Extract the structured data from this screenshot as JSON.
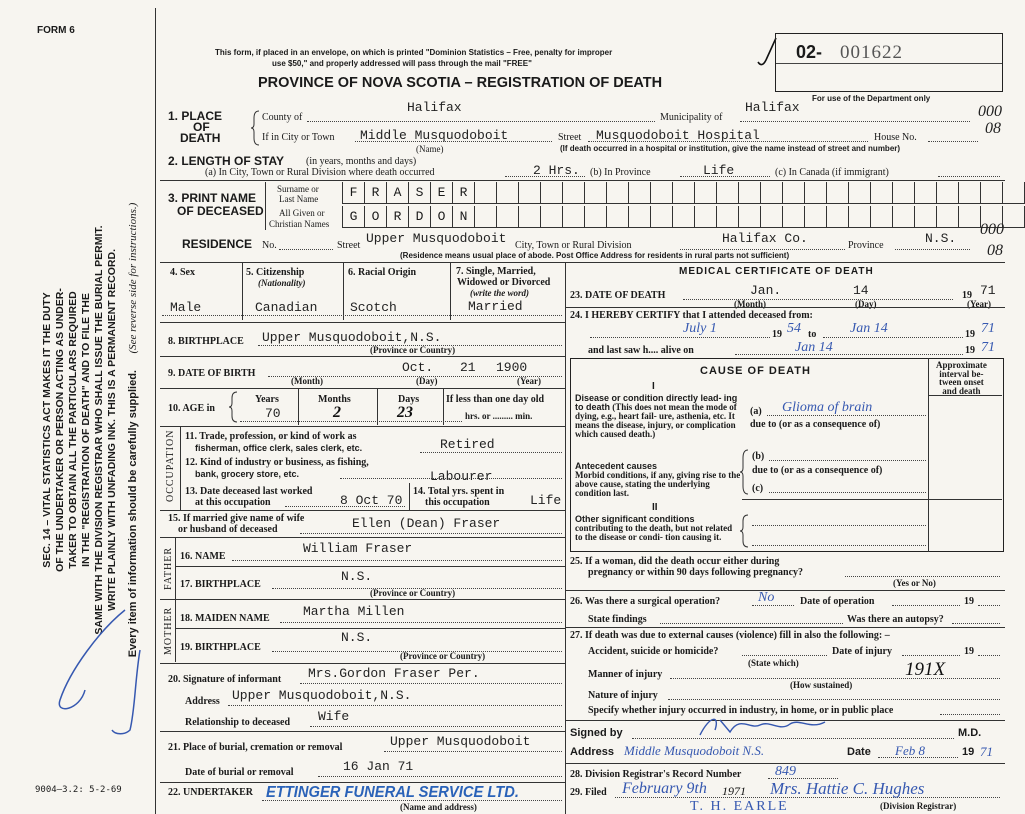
{
  "margin": {
    "form_no": "FORM 6",
    "notice": [
      "SEC. 14 – VITAL STATISTICS ACT MAKES IT THE DUTY",
      "OF THE UNDERTAKER OR PERSON ACTING AS UNDER-",
      "TAKER TO OBTAIN ALL THE PARTICULARS REQUIRED",
      "IN THE \"REGISTRATION OF DEATH\" AND TO FILE THE",
      "SAME WITH THE DIVISION REGISTRAR WHO SHALL ISSUE THE BURIAL PERMIT.",
      "WRITE PLAINLY WITH UNFADING INK. THIS IS A PERMANENT RECORD."
    ],
    "every_item": "Every item of information should be carefully supplied.",
    "see_reverse": "(See reverse side for instructions.)",
    "print_code": "9004–3.2: 5-2-69"
  },
  "header": {
    "mail_note_1": "This form, if placed in an envelope, on which is printed \"Dominion Statistics – Free, penalty for improper",
    "mail_note_2": "use $50,\" and properly addressed will pass through the mail \"FREE\"",
    "title": "PROVINCE OF NOVA SCOTIA – REGISTRATION OF DEATH",
    "reg_prefix": "02-",
    "reg_number": "001622",
    "dept_only": "For use of the Department only",
    "dept_code_1": "000",
    "dept_code_2": "08"
  },
  "place_of_death": {
    "label_1": "1. PLACE",
    "label_2": "OF",
    "label_3": "DEATH",
    "county_label": "County of",
    "county": "Halifax",
    "municipality_label": "Municipality of",
    "municipality": "Halifax",
    "city_label": "If in City or Town",
    "city": "Middle Musquodoboit",
    "name_note": "(Name)",
    "street_label": "Street",
    "street": "Musquodoboit Hospital",
    "house_label": "House No.",
    "hospital_note": "(If death occurred in a hospital or institution, give the name instead of street and number)"
  },
  "length_of_stay": {
    "label": "2. LENGTH OF STAY",
    "label_note": "(in years, months and days)",
    "a_label": "(a) In City, Town or Rural Division where death occurred",
    "a": "2 Hrs.",
    "b_label": "(b) In Province",
    "b": "Life",
    "c_label": "(c) In Canada (if immigrant)"
  },
  "name": {
    "label_1": "3. PRINT NAME",
    "label_2": "OF DECEASED",
    "surname_label_1": "Surname or",
    "surname_label_2": "Last Name",
    "given_label_1": "All Given or",
    "given_label_2": "Christian Names",
    "surname_letters": [
      "F",
      "R",
      "A",
      "S",
      "E",
      "R"
    ],
    "given_letters": [
      "G",
      "O",
      "R",
      "D",
      "O",
      "N"
    ]
  },
  "residence": {
    "label": "RESIDENCE",
    "no_label": "No.",
    "street_label": "Street",
    "street": "Upper Musquodoboit",
    "city_label": "City, Town or Rural Division",
    "city": "Halifax Co.",
    "province_label": "Province",
    "province": "N.S.",
    "note": "(Residence means usual place of abode. Post Office Address for residents in rural parts not sufficient)",
    "code_1": "000",
    "code_2": "08"
  },
  "personal": {
    "sex_label": "4. Sex",
    "sex": "Male",
    "citizenship_label": "5. Citizenship",
    "citizenship_sub": "(Nationality)",
    "citizenship": "Canadian",
    "racial_label": "6. Racial Origin",
    "racial": "Scotch",
    "marital_label_1": "7. Single, Married,",
    "marital_label_2": "Widowed or Divorced",
    "marital_label_3": "(write the word)",
    "marital": "Married",
    "birthplace_label": "8. BIRTHPLACE",
    "birthplace": "Upper Musquodoboit,N.S.",
    "prov_country": "(Province or Country)",
    "dob_label": "9. DATE OF BIRTH",
    "dob_month": "Oct.",
    "dob_day": "21",
    "dob_year": "1900",
    "month_note": "(Month)",
    "day_note": "(Day)",
    "year_note": "(Year)",
    "age_label": "10. AGE in",
    "years_label": "Years",
    "years": "70",
    "months_label": "Months",
    "months": "2",
    "days_label": "Days",
    "days": "23",
    "less_day_label": "If less than one day old",
    "hrs_min": "hrs. or ......... min."
  },
  "occupation": {
    "rail": "OCCUPATION",
    "trade_label_1": "11. Trade, profession, or kind of work as",
    "trade_label_2": "fisherman, office clerk, sales clerk, etc.",
    "trade": "Retired",
    "industry_label_1": "12. Kind of industry or business, as fishing,",
    "industry_label_2": "bank, grocery store, etc.",
    "industry": "Labourer",
    "last_worked_label_1": "13. Date deceased last worked",
    "last_worked_label_2": "at this occupation",
    "last_worked": "8 Oct 70",
    "total_yrs_label_1": "14. Total yrs. spent in",
    "total_yrs_label_2": "this occupation",
    "total_yrs": "Life"
  },
  "family": {
    "spouse_label_1": "15. If married give name of wife",
    "spouse_label_2": "or husband of deceased",
    "spouse": "Ellen (Dean) Fraser",
    "father_rail": "FATHER",
    "father_name_label": "16. NAME",
    "father_name": "William Fraser",
    "father_bp_label": "17. BIRTHPLACE",
    "father_bp": "N.S.",
    "mother_rail": "MOTHER",
    "mother_name_label": "18. MAIDEN NAME",
    "mother_name": "Martha Millen",
    "mother_bp_label": "19. BIRTHPLACE",
    "mother_bp": "N.S.",
    "prov_country": "(Province or Country)"
  },
  "informant": {
    "sig_label": "20. Signature of informant",
    "signature": "Mrs.Gordon Fraser   Per.",
    "address_label": "Address",
    "address": "Upper Musquodoboit,N.S.",
    "relationship_label": "Relationship to deceased",
    "relationship": "Wife"
  },
  "burial": {
    "place_label": "21. Place of burial, cremation or removal",
    "place": "Upper Musquodoboit",
    "date_label": "Date of burial or removal",
    "date": "16 Jan 71",
    "undertaker_label": "22. UNDERTAKER",
    "undertaker": "ETTINGER FUNERAL SERVICE LTD.",
    "name_address": "(Name and address)"
  },
  "medical": {
    "title": "MEDICAL CERTIFICATE OF DEATH",
    "dod_label": "23. DATE OF DEATH",
    "dod_month": "Jan.",
    "dod_day": "14",
    "dod_year_prefix": "19",
    "dod_year": "71",
    "month_note": "(Month)",
    "day_note": "(Day)",
    "year_note": "(Year)",
    "certify_label": "24. I HEREBY CERTIFY that I attended deceased from:",
    "from_date": "July 1",
    "from_year": "54",
    "nineteen": "19",
    "to_label": "to",
    "to_date": "Jan 14",
    "to_year": "71",
    "last_saw_label": "and last saw h.... alive on",
    "last_saw_date": "Jan 14",
    "last_saw_year": "71"
  },
  "cause": {
    "title": "CAUSE OF DEATH",
    "part_1": "I",
    "part_2": "II",
    "interval_label": [
      "Approximate",
      "interval be-",
      "tween onset",
      "and death"
    ],
    "direct_bold": [
      "Disease or condition directly lead-",
      "ing to death"
    ],
    "direct_text": [
      "(This does not mean",
      "the mode of dying, e.g., heart fail-",
      "ure, asthenia, etc. It means the",
      "disease, injury, or complication",
      "which caused death.)"
    ],
    "a_label": "(a)",
    "a": "Glioma of brain",
    "due_to": "due to (or as a consequence of)",
    "antecedent_bold": "Antecedent causes",
    "antecedent_text": [
      "Morbid conditions, if any, giving",
      "rise to the above cause, stating",
      "the underlying condition last."
    ],
    "b_label": "(b)",
    "c_label": "(c)",
    "other_bold": "Other significant conditions",
    "other_text": [
      "contributing to the death, but not",
      "related to the disease or condi-",
      "tion causing it."
    ]
  },
  "questions": {
    "q25_1": "25. If a woman, did the death occur either during",
    "q25_2": "pregnancy or within 90 days following pregnancy?",
    "yes_no": "(Yes or No)",
    "q26": "26. Was there a surgical operation?",
    "q26_answer": "No",
    "op_date": "Date of operation",
    "nineteen": "19",
    "findings": "State findings",
    "autopsy": "Was there an autopsy?",
    "q27": "27. If death was due to external causes (violence) fill in also the following: –",
    "accident": "Accident, suicide or homicide?",
    "state_which": "(State which)",
    "injury_date": "Date of injury",
    "manner": "Manner of injury",
    "how": "(How sustained)",
    "manner_mark": "191X",
    "nature": "Nature of injury",
    "specify": "Specify whether injury occurred in industry, in home, or in public place"
  },
  "certification": {
    "signed_label": "Signed by",
    "md": "M.D.",
    "address_label": "Address",
    "address": "Middle Musquodoboit N.S.",
    "date_label": "Date",
    "date": "Feb 8",
    "year_prefix": "19",
    "year": "71",
    "record_label": "28. Division Registrar's Record Number",
    "record": "849",
    "filed_label": "29. Filed",
    "filed_date": "February 9th",
    "filed_year": "1971",
    "registrar": "Mrs. Hattie C. Hughes",
    "registrar_note": "(Division Registrar)",
    "stamp_name": "T. H. EARLE"
  },
  "colors": {
    "ink_blue": "#3658b0",
    "stamp_blue": "#2a62b8",
    "paper": "#f7f5f0"
  }
}
